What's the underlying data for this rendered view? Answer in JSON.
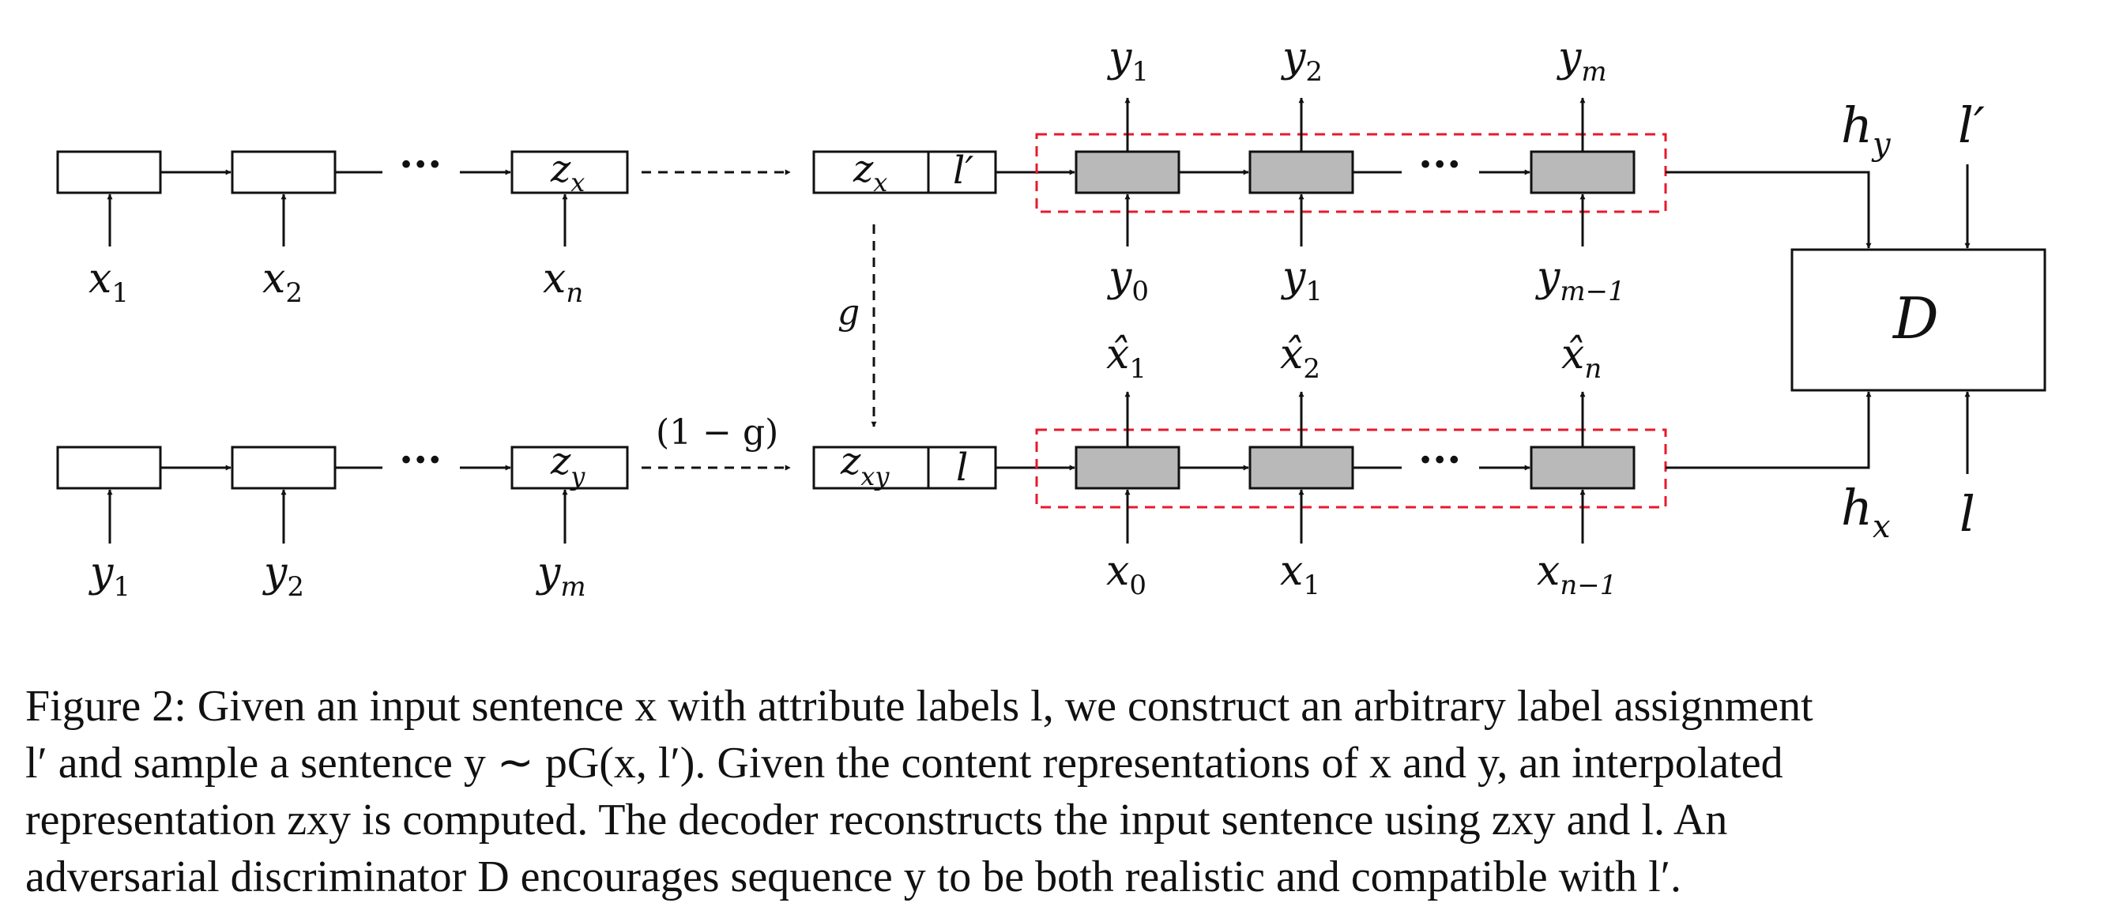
{
  "figure": {
    "encoder_top": {
      "inputs": [
        "x",
        "x",
        "x"
      ],
      "input_subs": [
        "1",
        "2",
        "n"
      ],
      "state": "z",
      "state_sub": "x"
    },
    "encoder_bottom": {
      "inputs": [
        "y",
        "y",
        "y"
      ],
      "input_subs": [
        "1",
        "2",
        "m"
      ],
      "state": "z",
      "state_sub": "y"
    },
    "concat_top": {
      "z": "z",
      "z_sub": "x",
      "label": "l′"
    },
    "concat_bottom": {
      "z": "z",
      "z_sub": "xy",
      "label": "l"
    },
    "gate_label": "g",
    "gate_complement": "(1 − g)",
    "decoder_top": {
      "outputs": [
        "y",
        "y",
        "y"
      ],
      "output_subs": [
        "1",
        "2",
        "m"
      ],
      "inputs": [
        "y",
        "y",
        "y"
      ],
      "input_subs": [
        "0",
        "1",
        "m−1"
      ]
    },
    "decoder_bottom": {
      "outputs": [
        "x̂",
        "x̂",
        "x̂"
      ],
      "output_subs": [
        "1",
        "2",
        "n"
      ],
      "inputs": [
        "x",
        "x",
        "x"
      ],
      "input_subs": [
        "0",
        "1",
        "n−1"
      ]
    },
    "discriminator": {
      "label": "D",
      "h_top": "h",
      "h_top_sub": "y",
      "l_top": "l′",
      "h_bottom": "h",
      "h_bottom_sub": "x",
      "l_bottom": "l"
    },
    "ellipsis": "···"
  },
  "caption": {
    "line1": "Figure 2: Given an input sentence x with attribute labels l, we construct an arbitrary label assignment",
    "line2": "l′ and sample a sentence y ∼ pG(x, l′). Given the content representations of x and y, an interpolated",
    "line3": "representation zxy is computed. The decoder reconstructs the input sentence using zxy and l. An",
    "line4": "adversarial discriminator D encourages sequence y to be both realistic and compatible with l′."
  }
}
